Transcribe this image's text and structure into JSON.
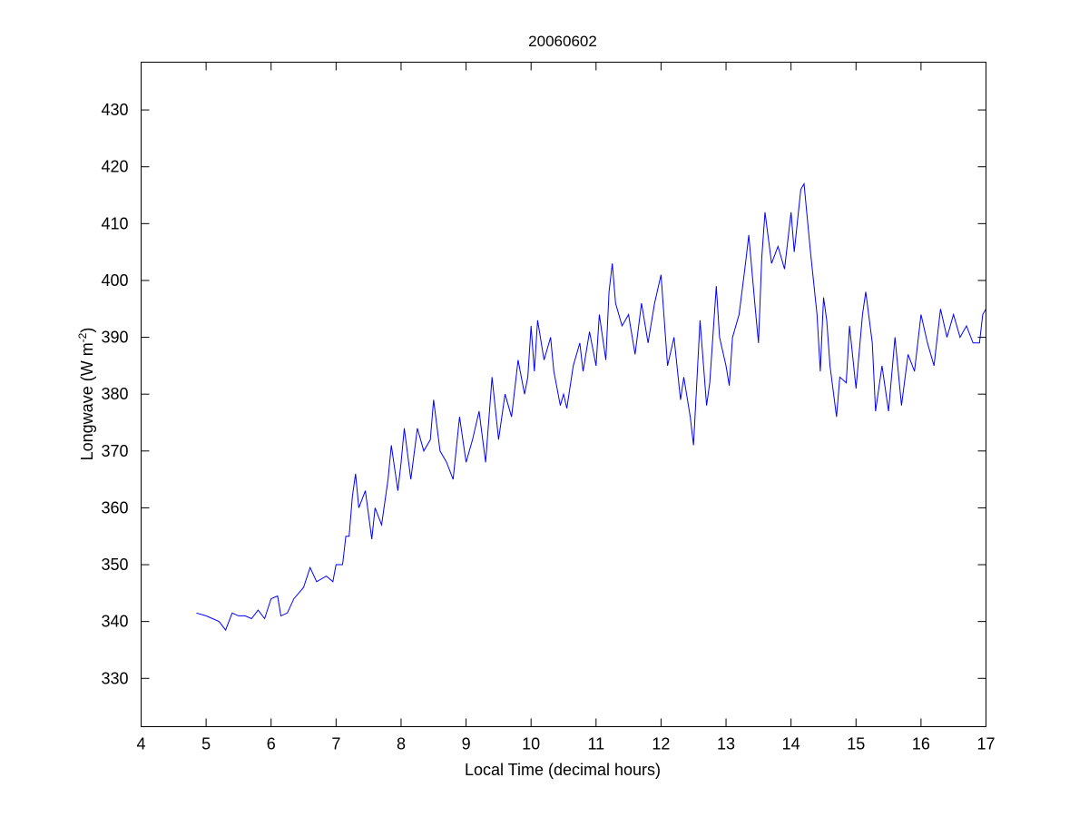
{
  "chart_data": {
    "type": "line",
    "title": "20060602",
    "xlabel": "Local Time (decimal hours)",
    "ylabel": {
      "main": "Longwave (W m",
      "sup": "-2",
      "end": ")"
    },
    "xlim": [
      4,
      17
    ],
    "ylim": [
      321.5,
      438.4
    ],
    "xticks": [
      4,
      5,
      6,
      7,
      8,
      9,
      10,
      11,
      12,
      13,
      14,
      15,
      16,
      17
    ],
    "yticks": [
      330,
      340,
      350,
      360,
      370,
      380,
      390,
      400,
      410,
      420,
      430
    ],
    "grid": false,
    "line_color": "#0000ff",
    "series": [
      {
        "name": "Longwave",
        "x": [
          4.85,
          5.0,
          5.1,
          5.2,
          5.3,
          5.4,
          5.5,
          5.6,
          5.7,
          5.8,
          5.9,
          6.0,
          6.1,
          6.15,
          6.25,
          6.35,
          6.5,
          6.6,
          6.7,
          6.85,
          6.95,
          7.0,
          7.1,
          7.15,
          7.2,
          7.25,
          7.3,
          7.35,
          7.45,
          7.55,
          7.6,
          7.7,
          7.8,
          7.85,
          7.95,
          8.0,
          8.05,
          8.15,
          8.25,
          8.35,
          8.45,
          8.5,
          8.6,
          8.7,
          8.8,
          8.9,
          9.0,
          9.1,
          9.2,
          9.3,
          9.4,
          9.5,
          9.6,
          9.7,
          9.8,
          9.9,
          9.95,
          10.0,
          10.05,
          10.1,
          10.2,
          10.3,
          10.35,
          10.45,
          10.5,
          10.55,
          10.65,
          10.75,
          10.8,
          10.9,
          11.0,
          11.05,
          11.15,
          11.2,
          11.25,
          11.3,
          11.4,
          11.5,
          11.6,
          11.7,
          11.8,
          11.9,
          12.0,
          12.1,
          12.2,
          12.3,
          12.35,
          12.45,
          12.5,
          12.6,
          12.7,
          12.75,
          12.85,
          12.9,
          13.0,
          13.05,
          13.1,
          13.2,
          13.3,
          13.35,
          13.45,
          13.5,
          13.55,
          13.6,
          13.7,
          13.8,
          13.9,
          14.0,
          14.05,
          14.15,
          14.2,
          14.3,
          14.4,
          14.45,
          14.5,
          14.55,
          14.6,
          14.7,
          14.75,
          14.85,
          14.9,
          15.0,
          15.1,
          15.15,
          15.25,
          15.3,
          15.4,
          15.5,
          15.6,
          15.7,
          15.8,
          15.9,
          16.0,
          16.1,
          16.2,
          16.3,
          16.4,
          16.5,
          16.6,
          16.7,
          16.8,
          16.9,
          16.95,
          17.0
        ],
        "y": [
          341.5,
          341,
          340.5,
          340,
          338.5,
          341.5,
          341,
          341,
          340.5,
          342,
          340.5,
          344,
          344.5,
          341,
          341.5,
          344,
          346,
          349.5,
          347,
          348,
          347,
          350,
          350,
          355,
          355,
          362,
          366,
          360,
          363,
          354.5,
          360,
          357,
          365,
          371,
          363,
          368,
          374,
          365,
          374,
          370,
          372,
          379,
          370,
          368,
          365,
          376,
          368,
          372,
          377,
          368,
          383,
          372,
          380,
          376,
          386,
          380,
          383,
          392,
          384,
          393,
          386,
          390,
          384,
          378,
          380,
          377.5,
          385,
          389,
          384,
          391,
          385,
          394,
          386,
          398,
          403,
          396,
          392,
          394,
          387,
          396,
          389,
          396,
          401,
          385,
          390,
          379,
          383,
          376,
          371,
          393,
          378,
          382,
          399,
          390,
          385,
          381.5,
          390,
          394,
          403,
          408,
          395,
          389,
          404,
          412,
          403,
          406,
          402,
          412,
          405,
          416,
          417,
          405,
          394,
          384,
          397,
          393,
          385,
          376,
          383,
          382,
          392,
          381,
          394,
          398,
          389,
          377,
          385,
          377,
          390,
          378,
          387,
          384,
          394,
          389,
          385,
          395,
          390,
          394,
          390,
          392,
          389,
          389,
          394,
          395
        ]
      }
    ]
  }
}
